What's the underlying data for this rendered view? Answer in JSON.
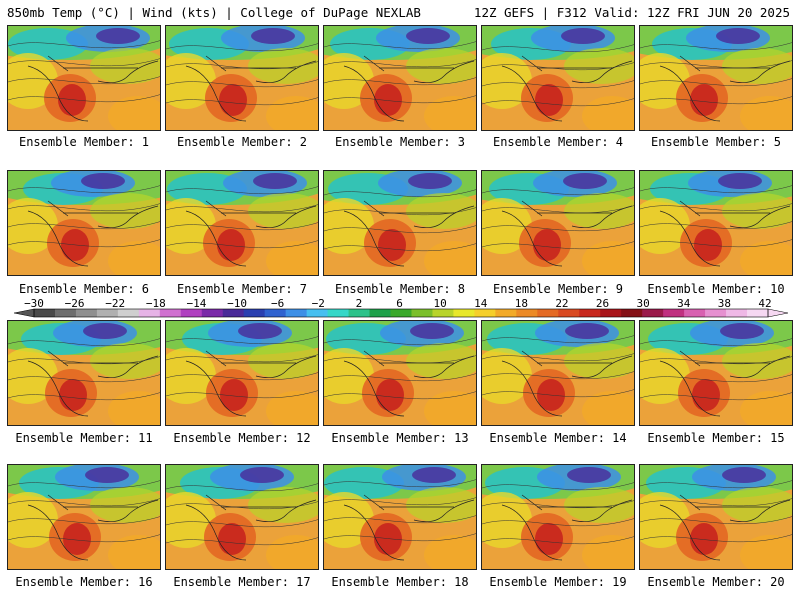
{
  "header": {
    "left": "850mb Temp (°C) | Wind (kts) | College of DuPage NEXLAB",
    "right": "12Z GEFS | F312 Valid: 12Z FRI JUN 20 2025"
  },
  "panels": [
    {
      "label": "Ensemble Member: 1"
    },
    {
      "label": "Ensemble Member: 2"
    },
    {
      "label": "Ensemble Member: 3"
    },
    {
      "label": "Ensemble Member: 4"
    },
    {
      "label": "Ensemble Member: 5"
    },
    {
      "label": "Ensemble Member: 6"
    },
    {
      "label": "Ensemble Member: 7"
    },
    {
      "label": "Ensemble Member: 8"
    },
    {
      "label": "Ensemble Member: 9"
    },
    {
      "label": "Ensemble Member: 10"
    },
    {
      "label": "Ensemble Member: 11"
    },
    {
      "label": "Ensemble Member: 12"
    },
    {
      "label": "Ensemble Member: 13"
    },
    {
      "label": "Ensemble Member: 14"
    },
    {
      "label": "Ensemble Member: 15"
    },
    {
      "label": "Ensemble Member: 16"
    },
    {
      "label": "Ensemble Member: 17"
    },
    {
      "label": "Ensemble Member: 18"
    },
    {
      "label": "Ensemble Member: 19"
    },
    {
      "label": "Ensemble Member: 20"
    }
  ],
  "colorbar": {
    "ticks": [
      "−30",
      "−26",
      "−22",
      "−18",
      "−14",
      "−10",
      "−6",
      "−2",
      "2",
      "6",
      "10",
      "14",
      "18",
      "22",
      "26",
      "30",
      "34",
      "38",
      "42"
    ],
    "colors": [
      "#4a4a4a",
      "#6e6e6e",
      "#8f8f8f",
      "#b0b0b0",
      "#cfcfcf",
      "#e6b3e6",
      "#d070d0",
      "#b040c0",
      "#7a2aa8",
      "#4a2a98",
      "#2a3fb0",
      "#2f62cf",
      "#3d8fe6",
      "#46bff0",
      "#35d7c8",
      "#2cc28a",
      "#1ea04a",
      "#3aa82a",
      "#7bbf2a",
      "#b8d42a",
      "#e8e82a",
      "#f5cf2a",
      "#f2aa28",
      "#ec8a26",
      "#e46a24",
      "#d94a22",
      "#c8281e",
      "#a8141a",
      "#841016",
      "#9a1a4a",
      "#c03080",
      "#d860b0",
      "#e690d0",
      "#efb8e6",
      "#f6d8f2"
    ]
  }
}
